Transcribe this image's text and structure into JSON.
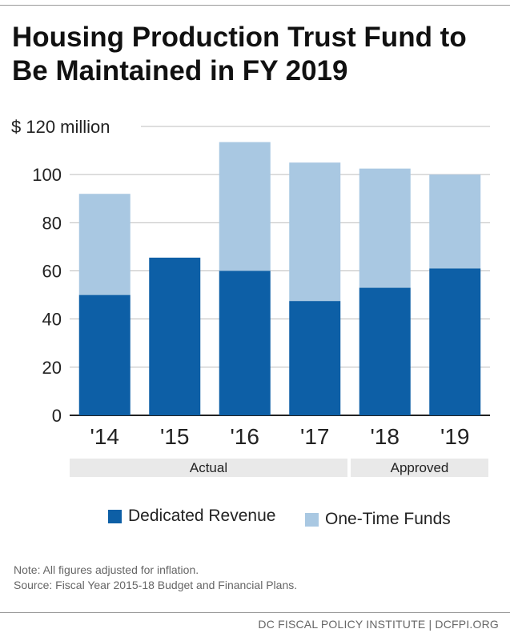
{
  "title": "Housing Production Trust Fund to Be Maintained in FY 2019",
  "chart_data": {
    "type": "bar",
    "stacked": true,
    "categories": [
      "'14",
      "'15",
      "'16",
      "'17",
      "'18",
      "'19"
    ],
    "series": [
      {
        "name": "Dedicated Revenue",
        "color": "#0d5fa6",
        "values": [
          50,
          65.5,
          60,
          47.5,
          53,
          61
        ]
      },
      {
        "name": "One-Time Funds",
        "color": "#a9c8e2",
        "values": [
          42,
          0,
          53.5,
          57.5,
          49.5,
          39
        ]
      }
    ],
    "ylim": [
      0,
      120
    ],
    "yticks": [
      {
        "value": 0,
        "label": "0"
      },
      {
        "value": 20,
        "label": "20"
      },
      {
        "value": 40,
        "label": "40"
      },
      {
        "value": 60,
        "label": "60"
      },
      {
        "value": 80,
        "label": "80"
      },
      {
        "value": 100,
        "label": "100"
      },
      {
        "value": 120,
        "label": "$ 120 million"
      }
    ],
    "groups": [
      {
        "label": "Actual",
        "categories": [
          "'14",
          "'15",
          "'16",
          "'17"
        ]
      },
      {
        "label": "Approved",
        "categories": [
          "'18",
          "'19"
        ]
      }
    ],
    "grid": true,
    "legend_position": "bottom"
  },
  "notes": {
    "note": "Note: All figures adjusted for inflation.",
    "source": "Source: Fiscal Year 2015-18 Budget and Financial Plans."
  },
  "footer": "DC FISCAL POLICY INSTITUTE | DCFPI.ORG"
}
